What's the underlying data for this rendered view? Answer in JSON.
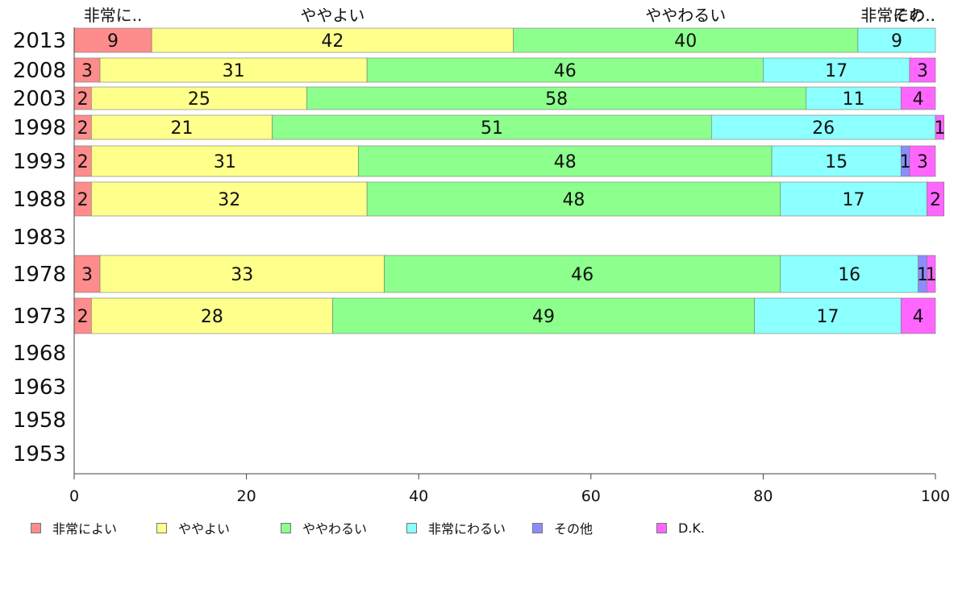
{
  "chart_data": {
    "type": "bar",
    "orientation": "horizontal",
    "stacked": true,
    "categories": [
      "2013",
      "2008",
      "2003",
      "1998",
      "1993",
      "1988",
      "1983",
      "1978",
      "1973",
      "1968",
      "1963",
      "1958",
      "1953"
    ],
    "series": [
      {
        "name": "非常によい",
        "short_label": "非常に..",
        "color": "#ff8c8c",
        "values": [
          9,
          3,
          2,
          2,
          2,
          2,
          null,
          3,
          2,
          null,
          null,
          null,
          null
        ]
      },
      {
        "name": "ややよい",
        "short_label": "ややよい",
        "color": "#ffff8c",
        "values": [
          42,
          31,
          25,
          21,
          31,
          32,
          null,
          33,
          28,
          null,
          null,
          null,
          null
        ]
      },
      {
        "name": "ややわるい",
        "short_label": "ややわるい",
        "color": "#8cff8c",
        "values": [
          40,
          46,
          58,
          51,
          48,
          48,
          null,
          46,
          49,
          null,
          null,
          null,
          null
        ]
      },
      {
        "name": "非常にわるい",
        "short_label": "非常にわ..",
        "color": "#8cffff",
        "values": [
          9,
          17,
          11,
          26,
          15,
          17,
          null,
          16,
          17,
          null,
          null,
          null,
          null
        ]
      },
      {
        "name": "その他",
        "short_label": "その..",
        "color": "#8c8cff",
        "values": [
          0,
          0,
          0,
          0,
          1,
          0,
          null,
          1,
          0,
          null,
          null,
          null,
          null
        ]
      },
      {
        "name": "D.K.",
        "short_label": "",
        "color": "#ff66ff",
        "values": [
          0,
          3,
          4,
          1,
          3,
          2,
          null,
          1,
          4,
          null,
          null,
          null,
          null
        ]
      }
    ],
    "xlim": [
      0,
      100
    ],
    "xticks": [
      "0",
      "20",
      "40",
      "60",
      "80",
      "100"
    ],
    "legend_position": "bottom"
  }
}
